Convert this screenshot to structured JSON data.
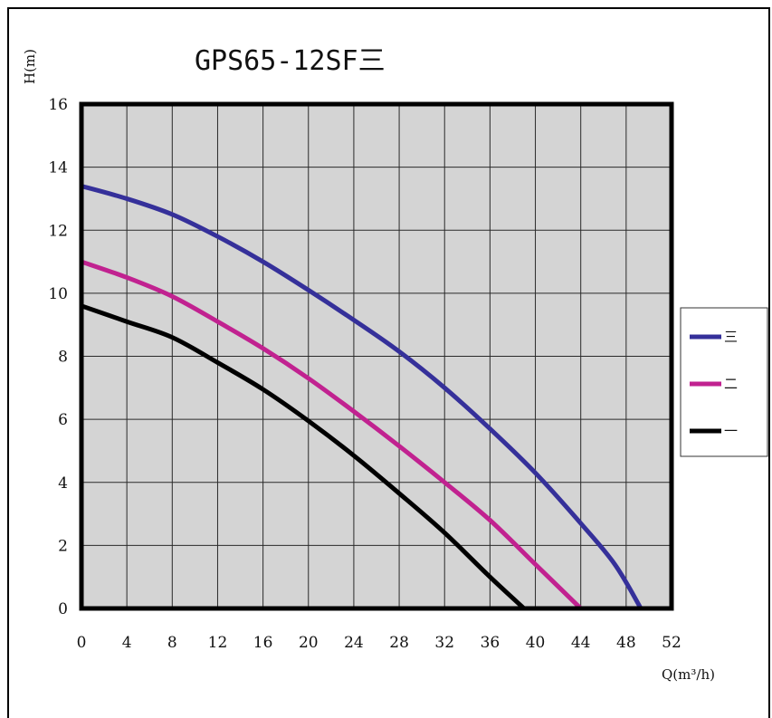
{
  "chart_data": {
    "type": "line",
    "title": "GPS65-12SF三",
    "xlabel": "Q(m³/h)",
    "ylabel": "H(m)",
    "xlim": [
      0,
      52
    ],
    "ylim": [
      0,
      16
    ],
    "xticks": [
      0,
      4,
      8,
      12,
      16,
      20,
      24,
      28,
      32,
      36,
      40,
      44,
      48,
      52
    ],
    "yticks": [
      0,
      2,
      4,
      6,
      8,
      10,
      12,
      14,
      16
    ],
    "grid": true,
    "legend_position": "right",
    "background": "#d4d4d4",
    "series": [
      {
        "name": "三",
        "color": "#35309a",
        "x": [
          0,
          4,
          8,
          12,
          16,
          20,
          24,
          28,
          32,
          36,
          40,
          44,
          47,
          49.3
        ],
        "y": [
          13.4,
          13.0,
          12.5,
          11.8,
          11.0,
          10.1,
          9.15,
          8.15,
          7.0,
          5.7,
          4.3,
          2.7,
          1.4,
          0
        ]
      },
      {
        "name": "二",
        "color": "#c12290",
        "x": [
          0,
          4,
          8,
          12,
          16,
          20,
          24,
          28,
          32,
          36,
          40,
          44
        ],
        "y": [
          11.0,
          10.5,
          9.9,
          9.1,
          8.25,
          7.3,
          6.25,
          5.15,
          4.0,
          2.8,
          1.4,
          0
        ]
      },
      {
        "name": "一",
        "color": "#000000",
        "x": [
          0,
          4,
          8,
          12,
          16,
          20,
          24,
          28,
          32,
          36,
          39
        ],
        "y": [
          9.6,
          9.1,
          8.6,
          7.8,
          6.95,
          5.95,
          4.85,
          3.65,
          2.4,
          1.0,
          0
        ]
      }
    ]
  }
}
